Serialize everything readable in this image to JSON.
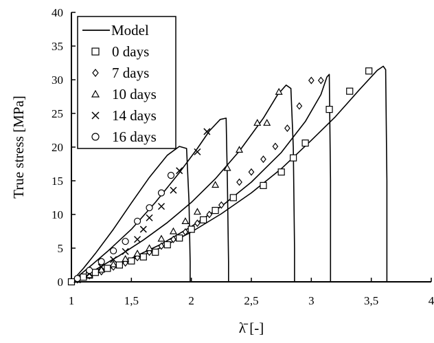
{
  "chart_data": {
    "type": "line",
    "title": "",
    "xlabel": "λ̄ [-]",
    "ylabel": "True stress [MPa]",
    "xlim": [
      1,
      4
    ],
    "ylim": [
      0,
      40
    ],
    "x_ticks": [
      "1",
      "1,5",
      "2",
      "2,5",
      "3",
      "3,5",
      "4"
    ],
    "y_ticks": [
      "0",
      "5",
      "10",
      "15",
      "20",
      "25",
      "30",
      "35",
      "40"
    ],
    "grid": false,
    "legend_position": "top-left",
    "legend": [
      {
        "label": "Model",
        "marker": "line"
      },
      {
        "label": "0 days",
        "marker": "square"
      },
      {
        "label": "7 days",
        "marker": "diamond"
      },
      {
        "label": "10 days",
        "marker": "triangle"
      },
      {
        "label": "14 days",
        "marker": "cross"
      },
      {
        "label": "16 days",
        "marker": "circle"
      }
    ],
    "model": [
      {
        "name": "0 days",
        "x": [
          1,
          1.25,
          1.5,
          1.75,
          2.0,
          2.25,
          2.5,
          2.75,
          3.0,
          3.2,
          3.4,
          3.55,
          3.6,
          3.62,
          3.63,
          3.63
        ],
        "y": [
          0,
          1.5,
          3.2,
          5.1,
          7.4,
          10.1,
          13.2,
          16.8,
          21.0,
          24.5,
          28.5,
          31.4,
          32.0,
          31.5,
          15,
          0
        ]
      },
      {
        "name": "7 days",
        "x": [
          1,
          1.25,
          1.5,
          1.75,
          2.0,
          2.25,
          2.5,
          2.75,
          2.95,
          3.08,
          3.13,
          3.15,
          3.16,
          3.16
        ],
        "y": [
          0,
          1.6,
          3.5,
          5.6,
          8.2,
          11.2,
          14.8,
          19.2,
          23.8,
          27.8,
          30.4,
          30.8,
          15,
          0
        ]
      },
      {
        "name": "10 days",
        "x": [
          1,
          1.2,
          1.4,
          1.6,
          1.8,
          2.0,
          2.2,
          2.4,
          2.6,
          2.72,
          2.79,
          2.83,
          2.85,
          2.86,
          2.86
        ],
        "y": [
          0,
          1.8,
          3.9,
          6.2,
          8.8,
          11.8,
          15.3,
          19.4,
          24.3,
          27.8,
          29.2,
          28.7,
          20,
          5,
          0
        ]
      },
      {
        "name": "14 days",
        "x": [
          1,
          1.15,
          1.3,
          1.5,
          1.7,
          1.9,
          2.05,
          2.15,
          2.24,
          2.29,
          2.3,
          2.31,
          2.31
        ],
        "y": [
          0,
          2.2,
          4.5,
          7.8,
          11.8,
          16.2,
          19.8,
          22.4,
          24.1,
          24.3,
          15,
          3,
          0
        ]
      },
      {
        "name": "16 days",
        "x": [
          1,
          1.1,
          1.2,
          1.35,
          1.5,
          1.65,
          1.8,
          1.9,
          1.96,
          1.98,
          1.99,
          1.99
        ],
        "y": [
          0,
          2.0,
          4.2,
          7.8,
          11.7,
          15.5,
          18.8,
          20.1,
          19.8,
          12,
          3,
          0
        ]
      }
    ],
    "series": [
      {
        "name": "0 days",
        "marker": "square",
        "x": [
          1.0,
          1.1,
          1.15,
          1.2,
          1.3,
          1.4,
          1.5,
          1.6,
          1.7,
          1.8,
          1.9,
          2.0,
          2.1,
          2.2,
          2.35,
          2.6,
          2.75,
          2.85,
          2.95,
          3.15,
          3.32,
          3.48
        ],
        "y": [
          0,
          0.7,
          1.0,
          1.4,
          2.0,
          2.5,
          3.1,
          3.7,
          4.4,
          5.5,
          6.5,
          7.8,
          9.2,
          10.6,
          12.5,
          14.3,
          16.3,
          18.4,
          20.6,
          25.6,
          28.3,
          31.3
        ]
      },
      {
        "name": "7 days",
        "marker": "diamond",
        "x": [
          1.05,
          1.15,
          1.25,
          1.35,
          1.45,
          1.55,
          1.65,
          1.75,
          1.85,
          1.95,
          2.05,
          2.15,
          2.25,
          2.4,
          2.5,
          2.6,
          2.7,
          2.8,
          2.9,
          3.0,
          3.08
        ],
        "y": [
          0.3,
          0.9,
          1.5,
          2.2,
          2.8,
          3.6,
          4.4,
          5.3,
          6.3,
          7.4,
          8.7,
          10.0,
          11.4,
          14.8,
          16.3,
          18.2,
          20.1,
          22.8,
          26.1,
          29.9,
          29.9
        ]
      },
      {
        "name": "10 days",
        "marker": "triangle",
        "x": [
          1.05,
          1.15,
          1.25,
          1.35,
          1.45,
          1.55,
          1.65,
          1.75,
          1.85,
          1.95,
          2.05,
          2.2,
          2.3,
          2.4,
          2.55,
          2.63,
          2.73
        ],
        "y": [
          0.3,
          1.0,
          1.8,
          2.6,
          3.4,
          4.2,
          5.0,
          6.4,
          7.5,
          9.0,
          10.4,
          14.4,
          16.9,
          19.6,
          23.6,
          23.6,
          28.2
        ]
      },
      {
        "name": "14 days",
        "marker": "cross",
        "x": [
          1.05,
          1.15,
          1.25,
          1.35,
          1.45,
          1.55,
          1.6,
          1.65,
          1.75,
          1.85,
          1.9,
          2.05,
          2.13
        ],
        "y": [
          0.3,
          1.2,
          2.2,
          3.3,
          4.5,
          6.3,
          7.8,
          9.5,
          11.2,
          13.6,
          16.5,
          19.3,
          22.3
        ]
      },
      {
        "name": "16 days",
        "marker": "circle",
        "x": [
          1.05,
          1.15,
          1.25,
          1.35,
          1.45,
          1.55,
          1.65,
          1.75,
          1.83
        ],
        "y": [
          0.5,
          1.7,
          3.0,
          4.6,
          6.0,
          9.0,
          11.0,
          13.2,
          15.8
        ]
      }
    ]
  }
}
